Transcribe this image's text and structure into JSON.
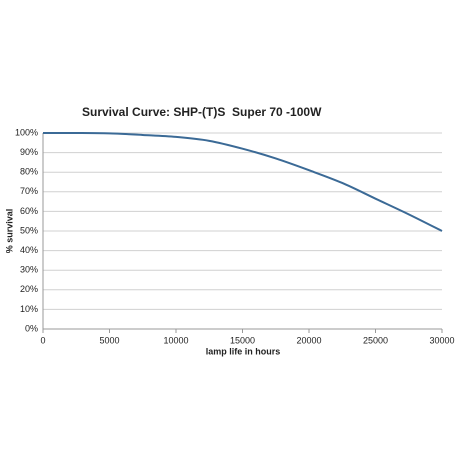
{
  "chart_data": {
    "type": "line",
    "title": "Survival Curve: SHP-(T)S  Super 70 -100W",
    "x_label": "lamp life in hours",
    "y_label": "% survival",
    "x": [
      0,
      2500,
      5000,
      7500,
      10000,
      12500,
      15000,
      17500,
      20000,
      22500,
      25000,
      27500,
      30000
    ],
    "series": [
      {
        "name": "survival",
        "color": "#3b6a96",
        "values": [
          100,
          100,
          99.8,
          99,
          98,
          96,
          92,
          87,
          81,
          74.5,
          66.5,
          58.5,
          50
        ]
      }
    ],
    "xlim": [
      0,
      30000
    ],
    "xticks": [
      0,
      5000,
      10000,
      15000,
      20000,
      25000,
      30000
    ],
    "ylim": [
      0,
      100
    ],
    "yticks": [
      {
        "value": 0,
        "label": "0%"
      },
      {
        "value": 10,
        "label": "10%"
      },
      {
        "value": 20,
        "label": "20%"
      },
      {
        "value": 30,
        "label": "30%"
      },
      {
        "value": 40,
        "label": "40%"
      },
      {
        "value": 50,
        "label": "50%"
      },
      {
        "value": 60,
        "label": "60%"
      },
      {
        "value": 70,
        "label": "70%"
      },
      {
        "value": 80,
        "label": "80%"
      },
      {
        "value": 90,
        "label": "90%"
      },
      {
        "value": 100,
        "label": "100%"
      }
    ],
    "grid": true
  }
}
